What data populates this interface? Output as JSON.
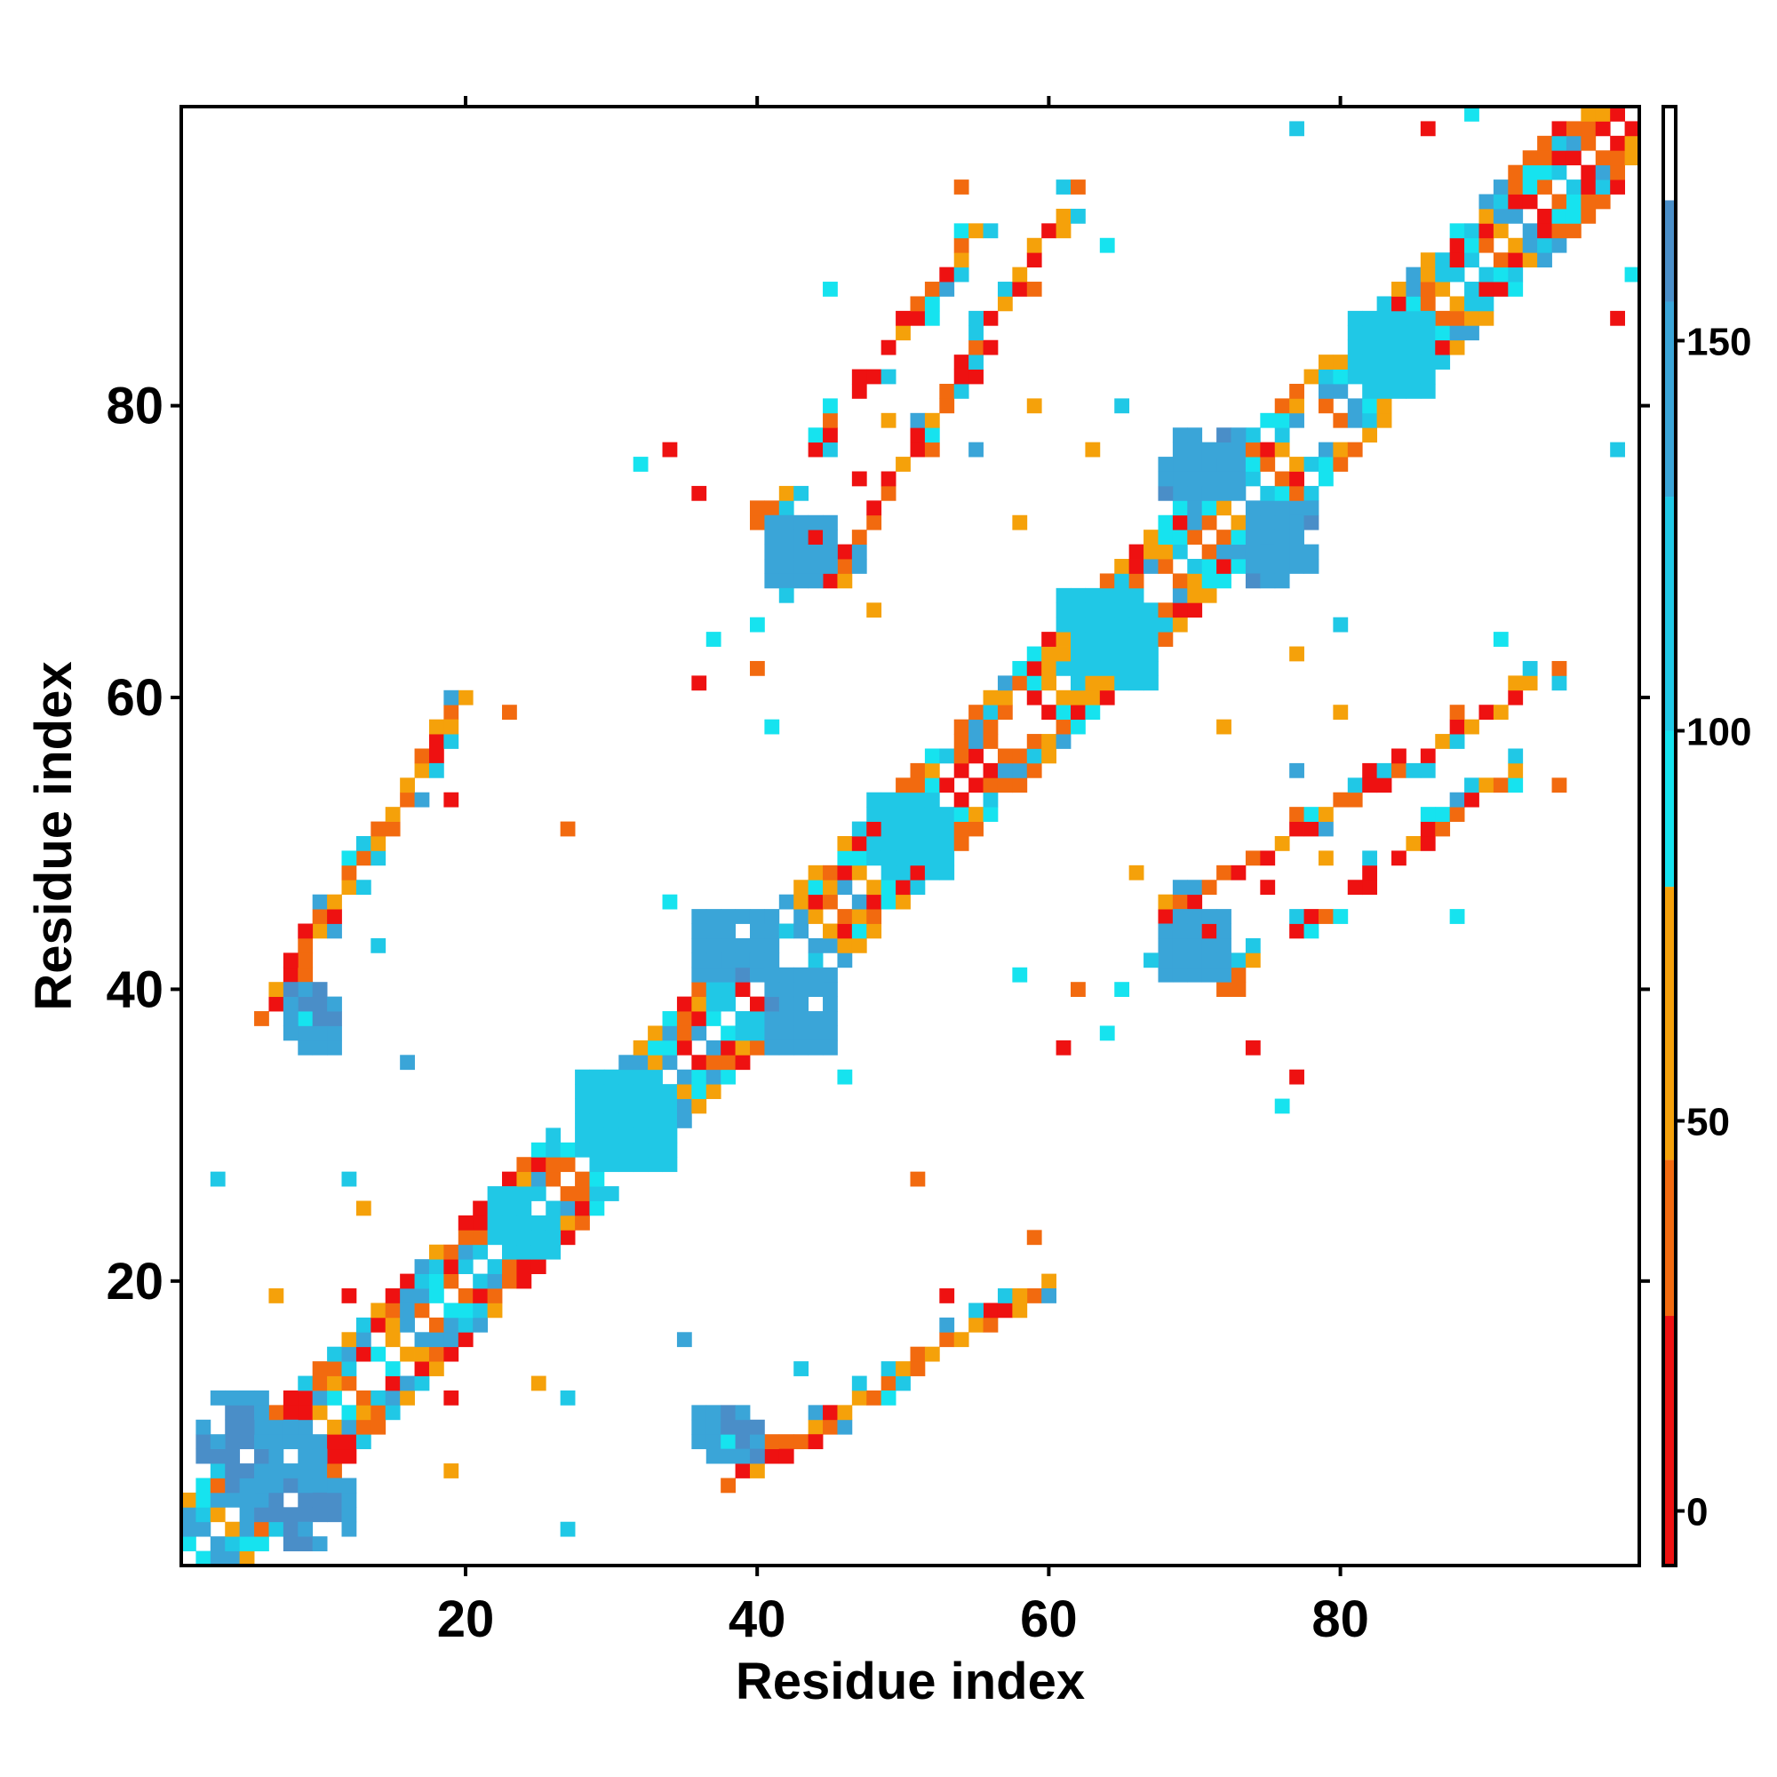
{
  "chart_data": {
    "type": "heatmap",
    "title": "",
    "xlabel": "Residue index",
    "ylabel": "Residue index",
    "x_range": [
      1,
      100
    ],
    "y_range": [
      1,
      100
    ],
    "x_ticks": [
      20,
      40,
      60,
      80
    ],
    "y_ticks": [
      20,
      40,
      60,
      80
    ],
    "colorbar": {
      "range": [
        -7,
        180
      ],
      "ticks": [
        0,
        50,
        100,
        150
      ],
      "placement": "right",
      "bins": [
        {
          "from": -7,
          "to": 25,
          "color": "#ee1111"
        },
        {
          "from": 25,
          "to": 45,
          "color": "#f26a0f"
        },
        {
          "from": 45,
          "to": 80,
          "color": "#f5a10a"
        },
        {
          "from": 80,
          "to": 100,
          "color": "#16e3ef"
        },
        {
          "from": 100,
          "to": 130,
          "color": "#20c8e6"
        },
        {
          "from": 130,
          "to": 155,
          "color": "#3aa5d8"
        },
        {
          "from": 155,
          "to": 168,
          "color": "#4a8ec8"
        },
        {
          "from": 168,
          "to": 180,
          "color": "#ffffff"
        }
      ]
    },
    "pattern": {
      "note_free": true,
      "symmetric": true,
      "diagonal_band_width": 4,
      "blocks": [
        {
          "x": [
            4,
            9
          ],
          "y": [
            5,
            10
          ],
          "value": 150
        },
        {
          "x": [
            8,
            12
          ],
          "y": [
            2,
            6
          ],
          "value": 152
        },
        {
          "x": [
            9,
            11
          ],
          "y": [
            36,
            40
          ],
          "value": 150
        },
        {
          "x": [
            37,
            40
          ],
          "y": [
            8,
            11
          ],
          "value": 150
        },
        {
          "x": [
            37,
            41
          ],
          "y": [
            41,
            45
          ],
          "value": 145
        },
        {
          "x": [
            41,
            45
          ],
          "y": [
            36,
            40
          ],
          "value": 145
        },
        {
          "x": [
            41,
            44
          ],
          "y": [
            68,
            72
          ],
          "value": 140
        },
        {
          "x": [
            69,
            72
          ],
          "y": [
            42,
            45
          ],
          "value": 142
        },
        {
          "x": [
            69,
            73
          ],
          "y": [
            74,
            78
          ],
          "value": 145
        },
        {
          "x": [
            74,
            77
          ],
          "y": [
            68,
            72
          ],
          "value": 145
        },
        {
          "x": [
            22,
            24
          ],
          "y": [
            23,
            26
          ],
          "value": 110
        },
        {
          "x": [
            29,
            34
          ],
          "y": [
            28,
            33
          ],
          "value": 115
        },
        {
          "x": [
            49,
            53
          ],
          "y": [
            48,
            52
          ],
          "value": 115
        },
        {
          "x": [
            62,
            67
          ],
          "y": [
            61,
            66
          ],
          "value": 112
        },
        {
          "x": [
            82,
            86
          ],
          "y": [
            81,
            86
          ],
          "value": 112
        }
      ]
    }
  }
}
